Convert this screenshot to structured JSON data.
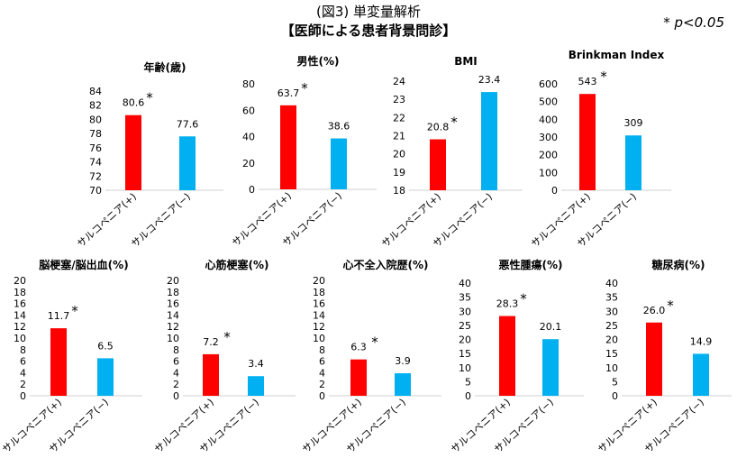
{
  "header": {
    "figure_label": "(図3)  単変量解析",
    "title": "【医師による患者背景問診】",
    "significance_note": "* p<0.05"
  },
  "colors": {
    "positive": "#ff0000",
    "negative": "#00b0f0"
  },
  "chart_data": [
    {
      "type": "bar",
      "title": "年齢(歳)",
      "categories": [
        "サルコペニア(+)",
        "サルコペニア(−)"
      ],
      "values": [
        80.6,
        77.6
      ],
      "labels": [
        "80.6",
        "77.6"
      ],
      "significant": [
        true,
        false
      ],
      "ylim": [
        70,
        84
      ],
      "yticks": [
        70,
        72,
        74,
        76,
        78,
        80,
        82,
        84
      ]
    },
    {
      "type": "bar",
      "title": "男性(%)",
      "categories": [
        "サルコペニア(+)",
        "サルコペニア(−)"
      ],
      "values": [
        63.7,
        38.6
      ],
      "labels": [
        "63.7",
        "38.6"
      ],
      "significant": [
        true,
        false
      ],
      "ylim": [
        0,
        80
      ],
      "yticks": [
        0,
        20,
        40,
        60,
        80
      ]
    },
    {
      "type": "bar",
      "title": "BMI",
      "categories": [
        "サルコペニア(+)",
        "サルコペニア(−)"
      ],
      "values": [
        20.8,
        23.4
      ],
      "labels": [
        "20.8",
        "23.4"
      ],
      "significant": [
        true,
        false
      ],
      "ylim": [
        18,
        24
      ],
      "yticks": [
        18,
        19,
        20,
        21,
        22,
        23,
        24
      ]
    },
    {
      "type": "bar",
      "title": "Brinkman Index",
      "categories": [
        "サルコペニア(+)",
        "サルコペニア(−)"
      ],
      "values": [
        543,
        309
      ],
      "labels": [
        "543",
        "309"
      ],
      "significant": [
        true,
        false
      ],
      "ylim": [
        0,
        600
      ],
      "yticks": [
        0,
        100,
        200,
        300,
        400,
        500,
        600
      ]
    },
    {
      "type": "bar",
      "title": "脳梗塞/脳出血(%)",
      "categories": [
        "サルコペニア(+)",
        "サルコペニア(−)"
      ],
      "values": [
        11.7,
        6.5
      ],
      "labels": [
        "11.7",
        "6.5"
      ],
      "significant": [
        true,
        false
      ],
      "ylim": [
        0,
        20
      ],
      "yticks": [
        0,
        2,
        4,
        6,
        8,
        10,
        12,
        14,
        16,
        18,
        20
      ]
    },
    {
      "type": "bar",
      "title": "心筋梗塞(%)",
      "categories": [
        "サルコペニア(+)",
        "サルコペニア(−)"
      ],
      "values": [
        7.2,
        3.4
      ],
      "labels": [
        "7.2",
        "3.4"
      ],
      "significant": [
        true,
        false
      ],
      "ylim": [
        0,
        20
      ],
      "yticks": [
        0,
        2,
        4,
        6,
        8,
        10,
        12,
        14,
        16,
        18,
        20
      ]
    },
    {
      "type": "bar",
      "title": "心不全入院歴(%)",
      "categories": [
        "サルコペニア(+)",
        "サルコペニア(−)"
      ],
      "values": [
        6.3,
        3.9
      ],
      "labels": [
        "6.3",
        "3.9"
      ],
      "significant": [
        true,
        false
      ],
      "ylim": [
        0,
        20
      ],
      "yticks": [
        0,
        2,
        4,
        6,
        8,
        10,
        12,
        14,
        16,
        18,
        20
      ]
    },
    {
      "type": "bar",
      "title": "悪性腫瘍(%)",
      "categories": [
        "サルコペニア(+)",
        "サルコペニア(−)"
      ],
      "values": [
        28.3,
        20.1
      ],
      "labels": [
        "28.3",
        "20.1"
      ],
      "significant": [
        true,
        false
      ],
      "ylim": [
        0,
        40
      ],
      "yticks": [
        0,
        5,
        10,
        15,
        20,
        25,
        30,
        35,
        40
      ]
    },
    {
      "type": "bar",
      "title": "糖尿病(%)",
      "categories": [
        "サルコペニア(+)",
        "サルコペニア(−)"
      ],
      "values": [
        26.0,
        14.9
      ],
      "labels": [
        "26.0",
        "14.9"
      ],
      "significant": [
        true,
        false
      ],
      "ylim": [
        0,
        40
      ],
      "yticks": [
        0,
        5,
        10,
        15,
        20,
        25,
        30,
        35,
        40
      ]
    }
  ]
}
